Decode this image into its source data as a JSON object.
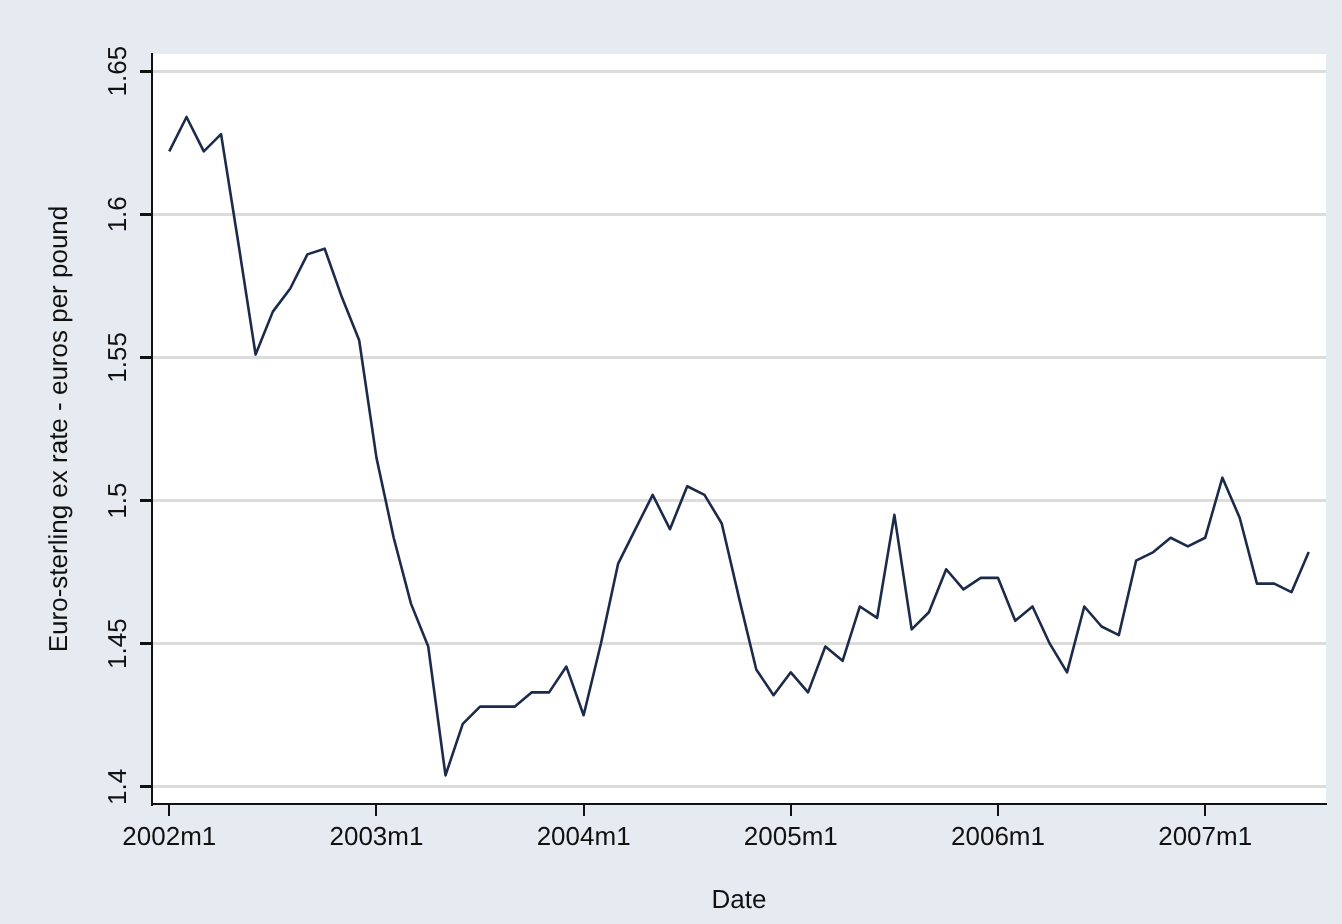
{
  "chart_data": {
    "type": "line",
    "xlabel": "Date",
    "ylabel": "Euro-sterling ex rate - euros per pound",
    "x": [
      "2002-01",
      "2002-02",
      "2002-03",
      "2002-04",
      "2002-05",
      "2002-06",
      "2002-07",
      "2002-08",
      "2002-09",
      "2002-10",
      "2002-11",
      "2002-12",
      "2003-01",
      "2003-02",
      "2003-03",
      "2003-04",
      "2003-05",
      "2003-06",
      "2003-07",
      "2003-08",
      "2003-09",
      "2003-10",
      "2003-11",
      "2003-12",
      "2004-01",
      "2004-02",
      "2004-03",
      "2004-04",
      "2004-05",
      "2004-06",
      "2004-07",
      "2004-08",
      "2004-09",
      "2004-10",
      "2004-11",
      "2004-12",
      "2005-01",
      "2005-02",
      "2005-03",
      "2005-04",
      "2005-05",
      "2005-06",
      "2005-07",
      "2005-08",
      "2005-09",
      "2005-10",
      "2005-11",
      "2005-12",
      "2006-01",
      "2006-02",
      "2006-03",
      "2006-04",
      "2006-05",
      "2006-06",
      "2006-07",
      "2006-08",
      "2006-09",
      "2006-10",
      "2006-11",
      "2006-12",
      "2007-01",
      "2007-02",
      "2007-03",
      "2007-04",
      "2007-05",
      "2007-06",
      "2007-07"
    ],
    "series": [
      {
        "color": "#1c2b4a",
        "values": [
          1.622,
          1.634,
          1.622,
          1.628,
          1.59,
          1.551,
          1.566,
          1.574,
          1.586,
          1.588,
          1.571,
          1.556,
          1.515,
          1.487,
          1.464,
          1.449,
          1.404,
          1.422,
          1.428,
          1.428,
          1.428,
          1.433,
          1.433,
          1.442,
          1.425,
          1.45,
          1.478,
          1.49,
          1.502,
          1.49,
          1.505,
          1.502,
          1.492,
          1.466,
          1.441,
          1.432,
          1.44,
          1.433,
          1.449,
          1.444,
          1.463,
          1.459,
          1.495,
          1.455,
          1.461,
          1.476,
          1.469,
          1.473,
          1.473,
          1.458,
          1.463,
          1.45,
          1.44,
          1.463,
          1.456,
          1.453,
          1.479,
          1.482,
          1.487,
          1.484,
          1.487,
          1.508,
          1.494,
          1.471,
          1.471,
          1.468,
          1.482
        ]
      }
    ],
    "xlim": [
      "2001-12",
      "2007-08"
    ],
    "xticks": [
      {
        "value": "2002-01",
        "label": "2002m1"
      },
      {
        "value": "2003-01",
        "label": "2003m1"
      },
      {
        "value": "2004-01",
        "label": "2004m1"
      },
      {
        "value": "2005-01",
        "label": "2005m1"
      },
      {
        "value": "2006-01",
        "label": "2006m1"
      },
      {
        "value": "2007-01",
        "label": "2007m1"
      }
    ],
    "ylim": [
      1.394,
      1.656
    ],
    "yticks": [
      1.4,
      1.45,
      1.5,
      1.55,
      1.6,
      1.65
    ],
    "grid": "y",
    "legend": false,
    "marker": "none",
    "line_style": "solid"
  }
}
